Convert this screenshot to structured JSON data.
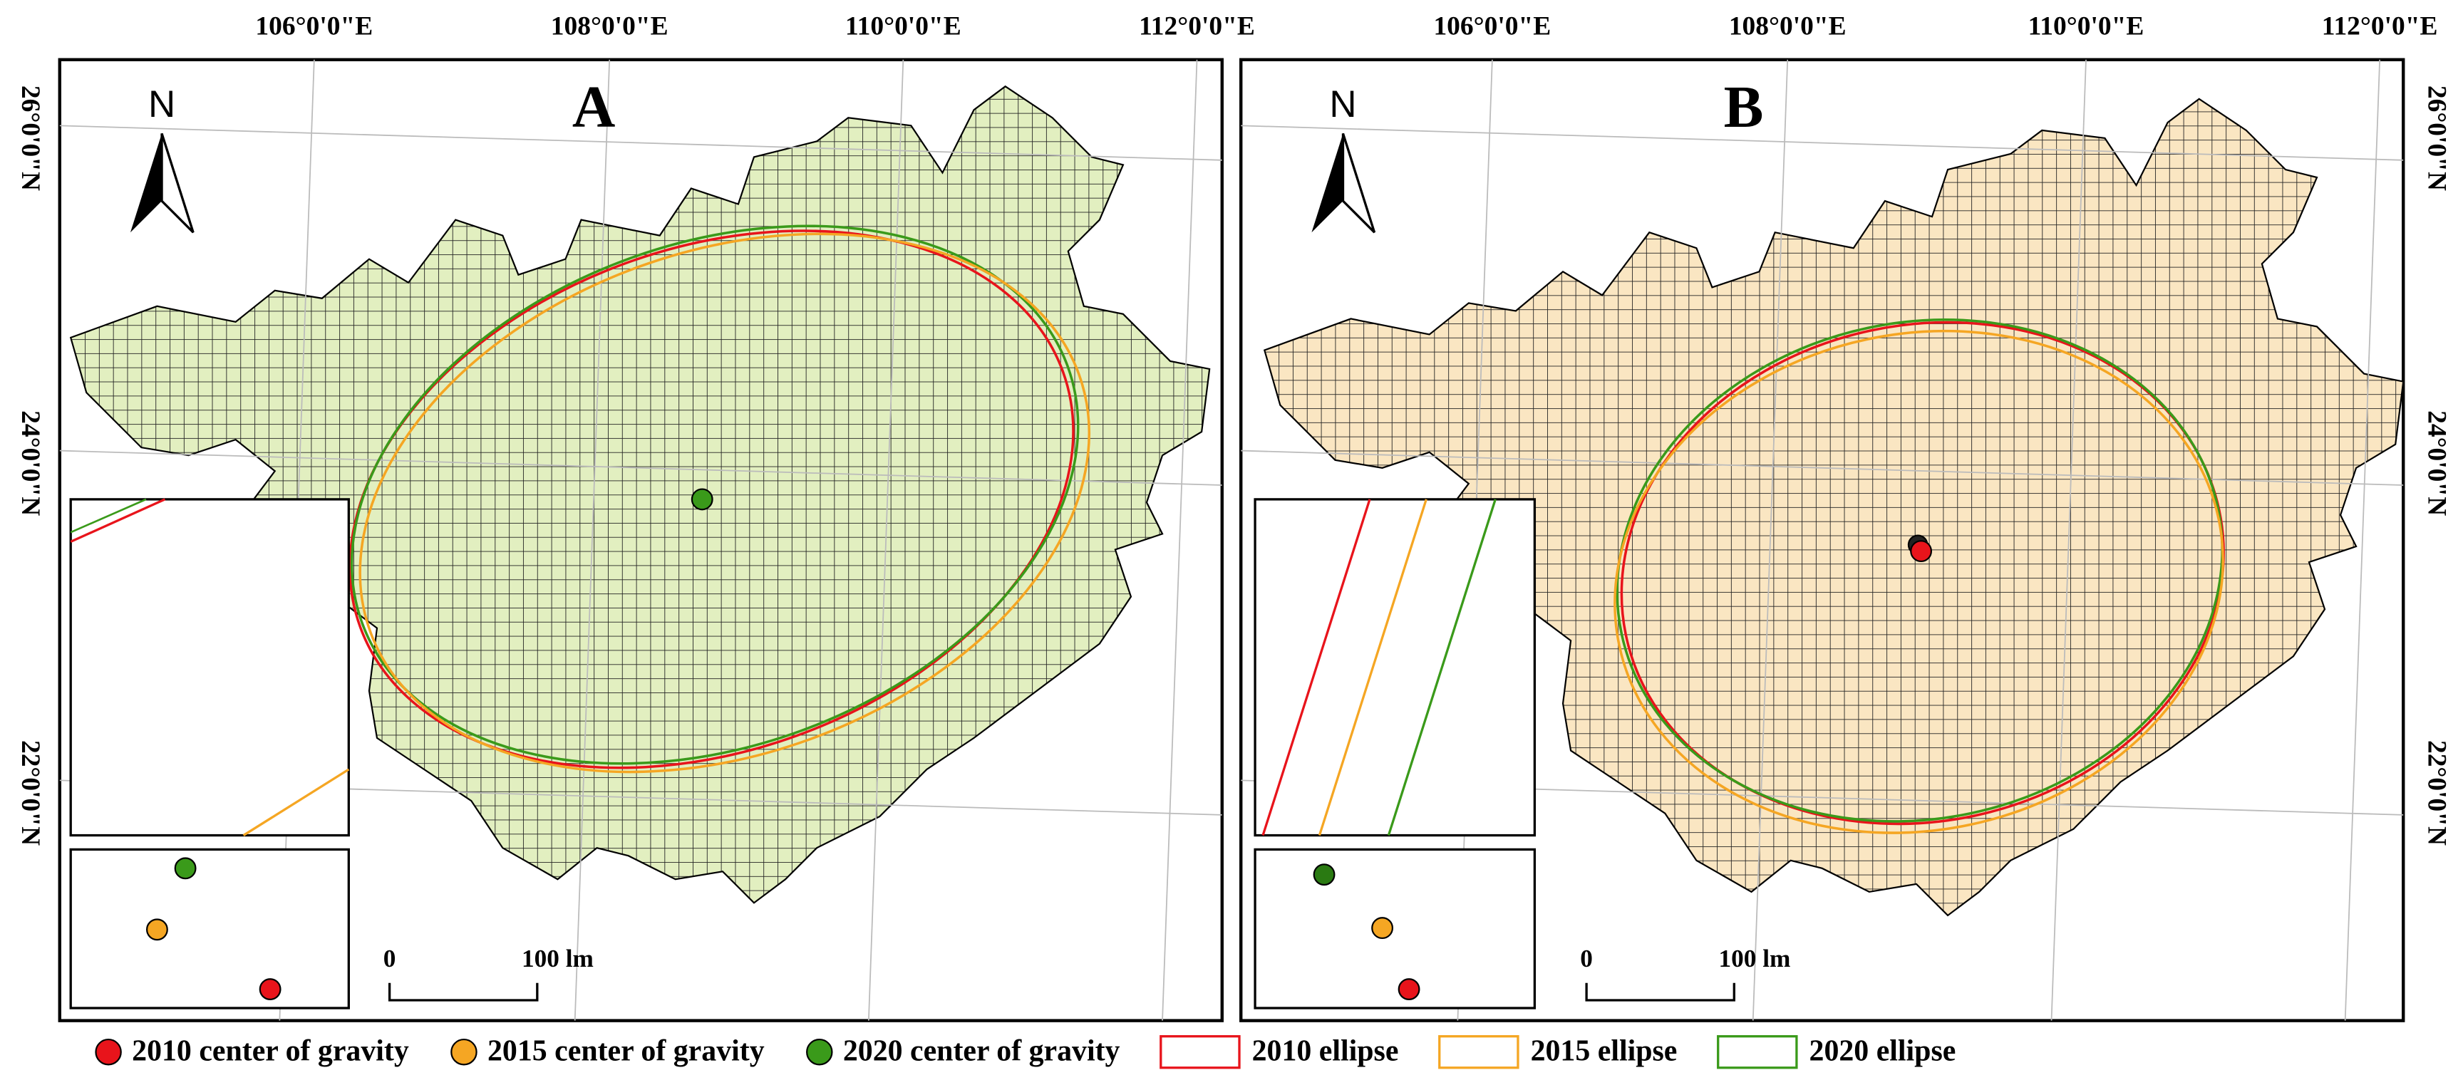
{
  "panels": [
    {
      "label": "A",
      "north": "N",
      "fill": "#e2efc0",
      "lon_ticks": [
        "106°0'0\"E",
        "108°0'0\"E",
        "110°0'0\"E",
        "112°0'0\"E"
      ],
      "lat_ticks": [
        "26°0'0\"N",
        "24°0'0\"N",
        "22°0'0\"N"
      ],
      "scale_bar": {
        "start": "0",
        "end": "100 lm"
      }
    },
    {
      "label": "B",
      "north": "N",
      "fill": "#fae6c2",
      "lon_ticks": [
        "106°0'0\"E",
        "108°0'0\"E",
        "110°0'0\"E",
        "112°0'0\"E"
      ],
      "lat_ticks": [
        "26°0'0\"N",
        "24°0'0\"N",
        "22°0'0\"N"
      ],
      "scale_bar": {
        "start": "0",
        "end": "100 lm"
      }
    }
  ],
  "legend": [
    {
      "label": "2010 center of gravity",
      "kind": "point",
      "color": "#e8141b"
    },
    {
      "label": "2015 center of gravity",
      "kind": "point",
      "color": "#f5a623"
    },
    {
      "label": "2020 center of gravity",
      "kind": "point",
      "color": "#3a9a1a"
    },
    {
      "label": "2010 ellipse",
      "kind": "ellipse",
      "color": "#e8141b"
    },
    {
      "label": "2015 ellipse",
      "kind": "ellipse",
      "color": "#f5a623"
    },
    {
      "label": "2020 ellipse",
      "kind": "ellipse",
      "color": "#3a9a1a"
    }
  ]
}
